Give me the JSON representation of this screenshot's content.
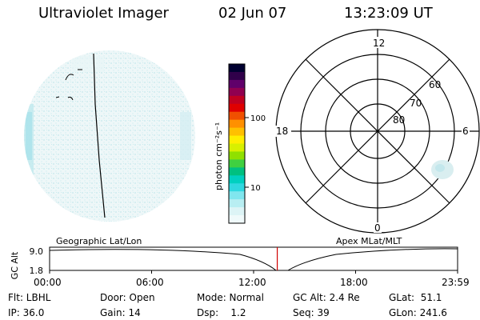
{
  "header": {
    "title": "Ultraviolet Imager",
    "date": "02 Jun 07",
    "time": "13:23:09 UT"
  },
  "colorbar": {
    "unit_label": "photon cm⁻²s⁻¹",
    "ticks": [
      "100",
      "10"
    ],
    "colors": [
      "#000030",
      "#30004a",
      "#60006a",
      "#900050",
      "#c00020",
      "#e00000",
      "#f05000",
      "#ff9000",
      "#ffc000",
      "#ffee00",
      "#d8f000",
      "#90e000",
      "#40d040",
      "#00c080",
      "#00d0c0",
      "#30d8e0",
      "#80e6ee",
      "#b8eef2",
      "#ddf4f6",
      "#f0fafb"
    ]
  },
  "polar_plot": {
    "mlt_labels": {
      "top": "12",
      "left": "18",
      "right": "6",
      "bottom": "0"
    },
    "lat_labels": [
      "60",
      "70",
      "80"
    ]
  },
  "timeline": {
    "left_title": "Geographic Lat/Lon",
    "right_title": "Apex MLat/MLT",
    "ylabel": "GC Alt",
    "y_ticks": [
      "9.0",
      "1.8"
    ],
    "x_ticks": [
      "00:00",
      "06:00",
      "12:00",
      "18:00",
      "23:59"
    ],
    "current_time_fraction": 0.558
  },
  "info": {
    "flt": "Flt: LBHL",
    "ip": "IP: 36.0",
    "door": "Door: Open",
    "gain": "Gain: 14",
    "mode": "Mode: Normal",
    "dsp": "Dsp:    1.2",
    "gcalt": "GC Alt: 2.4 Re",
    "seq": "Seq: 39",
    "glat": "GLat:  51.1",
    "glon": "GLon: 241.6"
  }
}
